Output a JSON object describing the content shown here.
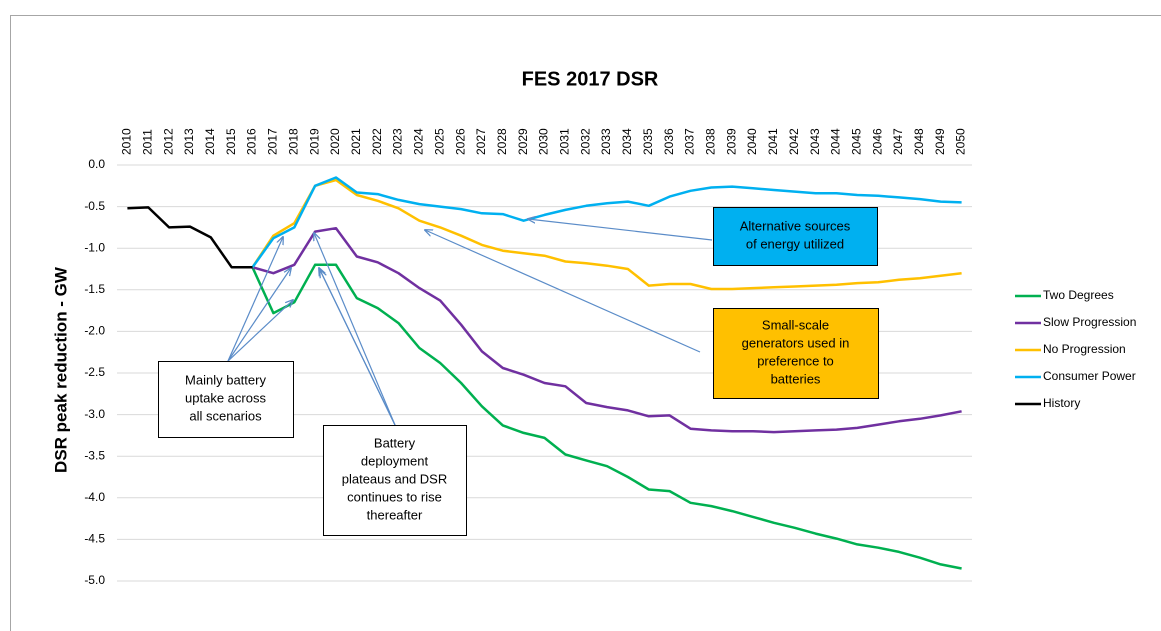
{
  "chart_data": {
    "type": "line",
    "title": "FES 2017  DSR",
    "y_label": "DSR peak reduction - GW",
    "categories": [
      "2010",
      "2011",
      "2012",
      "2013",
      "2014",
      "2015",
      "2016",
      "2017",
      "2018",
      "2019",
      "2020",
      "2021",
      "2022",
      "2023",
      "2024",
      "2025",
      "2026",
      "2027",
      "2028",
      "2029",
      "2030",
      "2031",
      "2032",
      "2033",
      "2034",
      "2035",
      "2036",
      "2037",
      "2038",
      "2039",
      "2040",
      "2041",
      "2042",
      "2043",
      "2044",
      "2045",
      "2046",
      "2047",
      "2048",
      "2049",
      "2050"
    ],
    "series": [
      {
        "name": "Two Degrees",
        "color": "#00b050",
        "values": [
          null,
          null,
          null,
          null,
          null,
          null,
          -1.23,
          -1.78,
          -1.65,
          -1.2,
          -1.2,
          -1.6,
          -1.72,
          -1.9,
          -2.2,
          -2.38,
          -2.62,
          -2.9,
          -3.13,
          -3.22,
          -3.28,
          -3.48,
          -3.55,
          -3.62,
          -3.75,
          -3.9,
          -3.92,
          -4.06,
          -4.1,
          -4.16,
          -4.23,
          -4.3,
          -4.36,
          -4.43,
          -4.49,
          -4.56,
          -4.6,
          -4.65,
          -4.72,
          -4.8,
          -4.85
        ]
      },
      {
        "name": "Slow Progression",
        "color": "#7030a0",
        "values": [
          null,
          null,
          null,
          null,
          null,
          null,
          -1.23,
          -1.3,
          -1.2,
          -0.8,
          -0.76,
          -1.1,
          -1.17,
          -1.3,
          -1.48,
          -1.63,
          -1.92,
          -2.24,
          -2.44,
          -2.52,
          -2.62,
          -2.66,
          -2.86,
          -2.91,
          -2.95,
          -3.02,
          -3.01,
          -3.17,
          -3.19,
          -3.2,
          -3.2,
          -3.21,
          -3.2,
          -3.19,
          -3.18,
          -3.16,
          -3.12,
          -3.08,
          -3.05,
          -3.01,
          -2.96
        ]
      },
      {
        "name": "No Progression",
        "color": "#ffc000",
        "values": [
          null,
          null,
          null,
          null,
          null,
          null,
          -1.23,
          -0.85,
          -0.7,
          -0.25,
          -0.18,
          -0.36,
          -0.43,
          -0.52,
          -0.67,
          -0.75,
          -0.85,
          -0.96,
          -1.03,
          -1.06,
          -1.09,
          -1.16,
          -1.18,
          -1.21,
          -1.25,
          -1.45,
          -1.43,
          -1.43,
          -1.49,
          -1.49,
          -1.48,
          -1.47,
          -1.46,
          -1.45,
          -1.44,
          -1.42,
          -1.41,
          -1.38,
          -1.36,
          -1.33,
          -1.3
        ]
      },
      {
        "name": "Consumer Power",
        "color": "#00b0f0",
        "values": [
          null,
          null,
          null,
          null,
          null,
          null,
          -1.23,
          -0.88,
          -0.75,
          -0.25,
          -0.15,
          -0.33,
          -0.35,
          -0.42,
          -0.47,
          -0.5,
          -0.53,
          -0.58,
          -0.59,
          -0.67,
          -0.6,
          -0.54,
          -0.49,
          -0.46,
          -0.44,
          -0.49,
          -0.38,
          -0.31,
          -0.27,
          -0.26,
          -0.28,
          -0.3,
          -0.32,
          -0.34,
          -0.34,
          -0.36,
          -0.37,
          -0.39,
          -0.41,
          -0.44,
          -0.45
        ]
      },
      {
        "name": "History",
        "color": "#000000",
        "values": [
          -0.52,
          -0.51,
          -0.75,
          -0.74,
          -0.87,
          -1.23,
          -1.23,
          null,
          null,
          null,
          null,
          null,
          null,
          null,
          null,
          null,
          null,
          null,
          null,
          null,
          null,
          null,
          null,
          null,
          null,
          null,
          null,
          null,
          null,
          null,
          null,
          null,
          null,
          null,
          null,
          null,
          null,
          null,
          null,
          null,
          null
        ]
      }
    ],
    "ylim": [
      -5,
      0
    ],
    "yticks": [
      {
        "value": 0,
        "label": "0.0"
      },
      -0.5,
      {
        "value": -1,
        "label": "-1.0"
      },
      -1.5,
      {
        "value": -2,
        "label": "-2.0"
      },
      -2.5,
      {
        "value": -3,
        "label": "-3.0"
      },
      -3.5,
      {
        "value": -4,
        "label": "-4.0"
      },
      -4.5,
      {
        "value": -5,
        "label": "-5.0"
      }
    ],
    "grid": true,
    "legend": "right",
    "annotations": [
      {
        "text": [
          "Alternative sources",
          "of energy utilized"
        ],
        "color": "#00b0f0"
      },
      {
        "text": [
          "Small-scale",
          "generators used in",
          "preference to",
          "batteries"
        ],
        "color": "#ffc000"
      },
      {
        "text": [
          "Mainly battery",
          "uptake across",
          "all scenarios"
        ],
        "color": "#ffffff"
      },
      {
        "text": [
          "Battery",
          "deployment",
          "plateaus and DSR",
          "continues to rise",
          "thereafter"
        ],
        "color": "#ffffff"
      }
    ]
  }
}
